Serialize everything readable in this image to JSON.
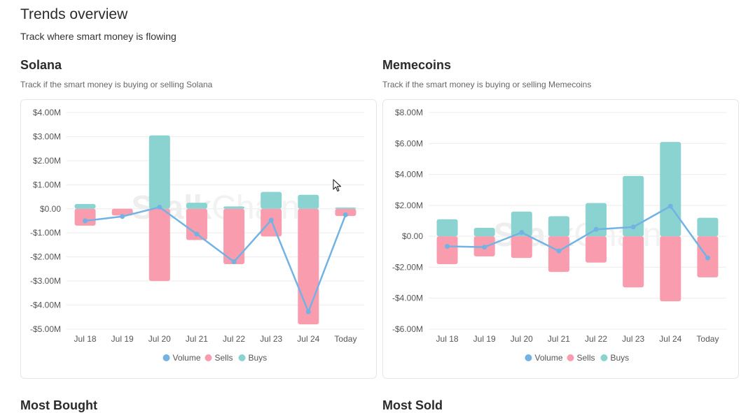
{
  "page": {
    "title": "Trends overview",
    "subtitle": "Track where smart money is flowing"
  },
  "sections": [
    {
      "title": "Solana",
      "description": "Track if the smart money is buying or selling Solana"
    },
    {
      "title": "Memecoins",
      "description": "Track if the smart money is buying or selling Memecoins"
    }
  ],
  "bottom_sections": [
    "Most Bought",
    "Most Sold"
  ],
  "watermark": {
    "bold": "Stalk",
    "light": "Chain"
  },
  "colors": {
    "buys": "#8ad3d1",
    "sells": "#f99cae",
    "volume": "#73b3e4",
    "grid": "#ececec"
  },
  "chart_data": [
    {
      "type": "bar",
      "title": "Solana",
      "categories": [
        "Jul 18",
        "Jul 19",
        "Jul 20",
        "Jul 21",
        "Jul 22",
        "Jul 23",
        "Jul 24",
        "Today"
      ],
      "ylim": [
        -5.0,
        4.0
      ],
      "y_ticks": [
        4,
        3,
        2,
        1,
        0,
        -1,
        -2,
        -3,
        -4,
        -5
      ],
      "y_tick_labels": [
        "$4.00M",
        "$3.00M",
        "$2.00M",
        "$1.00M",
        "$0.00",
        "-$1.00M",
        "-$2.00M",
        "-$3.00M",
        "-$4.00M",
        "-$5.00M"
      ],
      "series": [
        {
          "name": "Volume",
          "type": "line",
          "values": [
            -0.5,
            -0.32,
            0.07,
            -1.05,
            -2.2,
            -0.47,
            -4.28,
            -0.25
          ]
        },
        {
          "name": "Sells",
          "type": "bar",
          "values": [
            -0.7,
            -0.28,
            -3.0,
            -1.3,
            -2.3,
            -1.15,
            -4.8,
            -0.3
          ]
        },
        {
          "name": "Buys",
          "type": "bar",
          "values": [
            0.2,
            0.0,
            3.05,
            0.25,
            0.1,
            0.7,
            0.58,
            0.05
          ]
        }
      ],
      "legend": "bottom",
      "grid": true
    },
    {
      "type": "bar",
      "title": "Memecoins",
      "categories": [
        "Jul 18",
        "Jul 19",
        "Jul 20",
        "Jul 21",
        "Jul 22",
        "Jul 23",
        "Jul 24",
        "Today"
      ],
      "ylim": [
        -6.0,
        8.0
      ],
      "y_ticks": [
        8,
        6,
        4,
        2,
        0,
        -2,
        -4,
        -6
      ],
      "y_tick_labels": [
        "$8.00M",
        "$6.00M",
        "$4.00M",
        "$2.00M",
        "$0.00",
        "-$2.00M",
        "-$4.00M",
        "-$6.00M"
      ],
      "series": [
        {
          "name": "Volume",
          "type": "line",
          "values": [
            -0.65,
            -0.7,
            0.25,
            -0.95,
            0.45,
            0.6,
            1.95,
            -1.4
          ]
        },
        {
          "name": "Sells",
          "type": "bar",
          "values": [
            -1.8,
            -1.3,
            -1.4,
            -2.3,
            -1.7,
            -3.3,
            -4.2,
            -2.65
          ]
        },
        {
          "name": "Buys",
          "type": "bar",
          "values": [
            1.1,
            0.55,
            1.6,
            1.3,
            2.15,
            3.9,
            6.1,
            1.2
          ]
        }
      ],
      "legend": "bottom",
      "grid": true
    }
  ]
}
